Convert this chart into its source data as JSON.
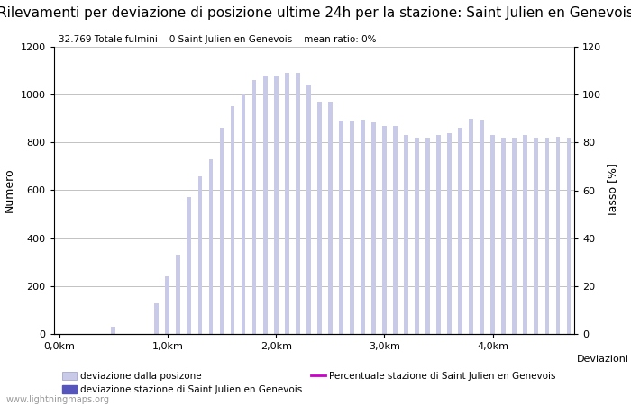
{
  "title": "Rilevamenti per deviazione di posizione ultime 24h per la stazione: Saint Julien en Genevois",
  "info_text": "32.769 Totale fulmini    0 Saint Julien en Genevois    mean ratio: 0%",
  "ylabel_left": "Numero",
  "ylabel_right": "Tasso [%]",
  "ylim_left": [
    0,
    1200
  ],
  "ylim_right": [
    0,
    120
  ],
  "yticks_left": [
    0,
    200,
    400,
    600,
    800,
    1000,
    1200
  ],
  "yticks_right": [
    0,
    20,
    40,
    60,
    80,
    100,
    120
  ],
  "xtick_labels": [
    "0,0km",
    "1,0km",
    "2,0km",
    "3,0km",
    "4,0km"
  ],
  "xtick_positions": [
    0,
    10,
    20,
    30,
    40
  ],
  "bar_width": 0.4,
  "bar_color": "#c8cae8",
  "station_bar_color": "#5555bb",
  "line_color": "#cc00cc",
  "background_color": "#ffffff",
  "grid_color": "#aaaaaa",
  "title_fontsize": 11,
  "axis_fontsize": 9,
  "tick_fontsize": 8,
  "watermark": "www.lightningmaps.org",
  "legend_label1": "deviazione dalla posizone",
  "legend_label2": "deviazione stazione di Saint Julien en Genevois",
  "legend_label3": "Percentuale stazione di Saint Julien en Genevois",
  "bar_values": [
    0,
    0,
    0,
    0,
    0,
    30,
    0,
    0,
    0,
    130,
    240,
    330,
    570,
    660,
    730,
    860,
    950,
    1000,
    1060,
    1080,
    1080,
    1090,
    1090,
    1040,
    970,
    970,
    890,
    890,
    895,
    885,
    870,
    870,
    830,
    820,
    820,
    830,
    840,
    860,
    900,
    895,
    830,
    820,
    820,
    830,
    820,
    820,
    825,
    820
  ]
}
